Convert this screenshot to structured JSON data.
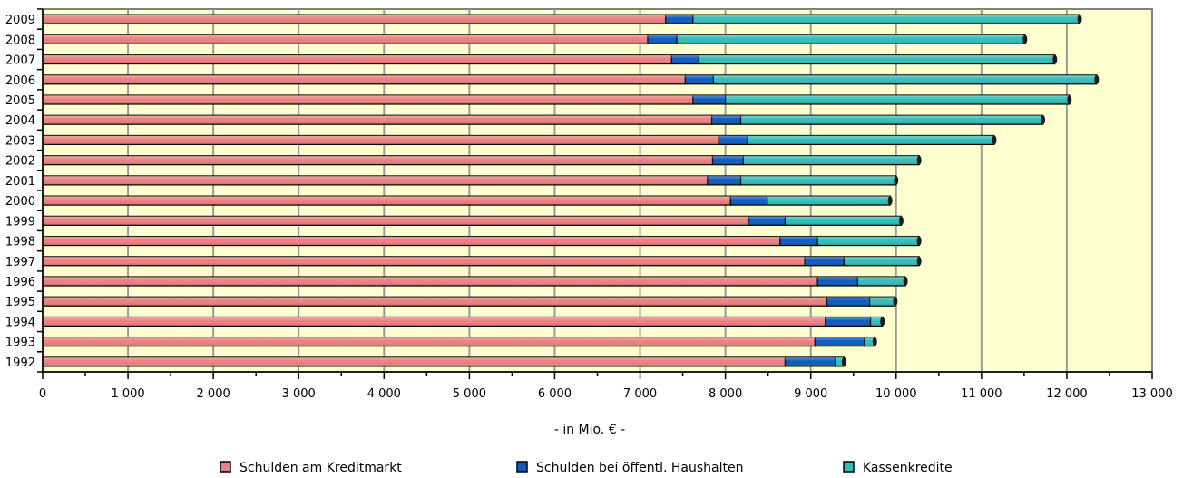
{
  "chart_data": {
    "type": "bar",
    "orientation": "horizontal",
    "stacked": true,
    "categories": [
      "1992",
      "1993",
      "1994",
      "1995",
      "1996",
      "1997",
      "1998",
      "1999",
      "2000",
      "2001",
      "2002",
      "2003",
      "2004",
      "2005",
      "2006",
      "2007",
      "2008",
      "2009"
    ],
    "series": [
      {
        "name": "Schulden am Kreditmarkt",
        "color": "#ec8080",
        "values": [
          8700,
          9050,
          9170,
          9190,
          9080,
          8930,
          8640,
          8270,
          8060,
          7790,
          7850,
          7920,
          7840,
          7620,
          7530,
          7370,
          7090,
          7300
        ]
      },
      {
        "name": "Schulden bei öffentl. Haushalten",
        "color": "#0c5bc0",
        "values": [
          590,
          580,
          530,
          500,
          470,
          460,
          440,
          430,
          430,
          390,
          360,
          340,
          340,
          380,
          330,
          320,
          340,
          320
        ]
      },
      {
        "name": "Kassenkredite",
        "color": "#33bdb8",
        "values": [
          100,
          120,
          140,
          300,
          560,
          880,
          1190,
          1360,
          1440,
          1820,
          2060,
          2890,
          3540,
          4030,
          4490,
          4170,
          4080,
          4530
        ]
      }
    ],
    "xlim": [
      0,
      13000
    ],
    "x_ticks": [
      "0",
      "1 000",
      "2 000",
      "3 000",
      "4 000",
      "5 000",
      "6 000",
      "7 000",
      "8 000",
      "9 000",
      "10 000",
      "11 000",
      "12 000",
      "13 000"
    ],
    "xlabel": "- in Mio. € -",
    "ylabel": "",
    "title": "",
    "grid": "vertical",
    "legend_position": "bottom",
    "plot_background": "#ffffd0"
  }
}
